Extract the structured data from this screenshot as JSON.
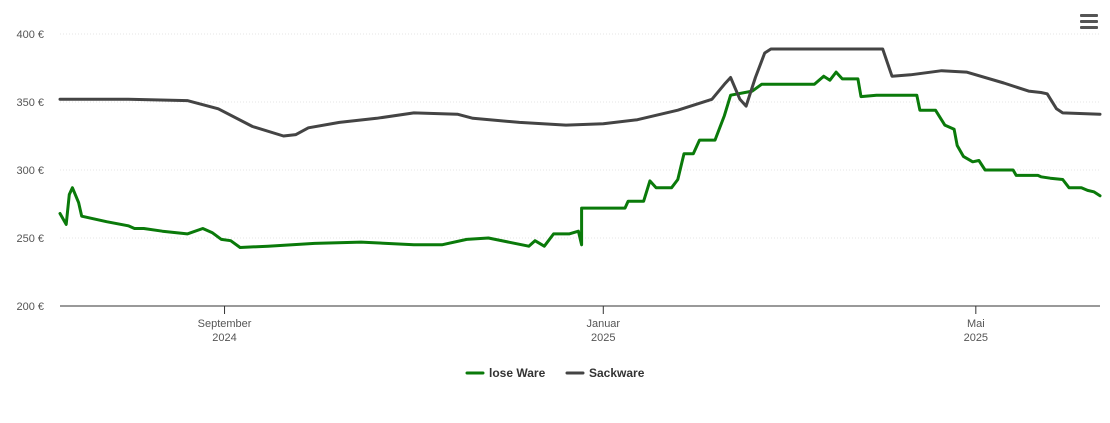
{
  "chart_data": {
    "type": "line",
    "y_unit": "€",
    "ylim": [
      200,
      400
    ],
    "y_ticks": [
      {
        "value": 200,
        "label": "200 €"
      },
      {
        "value": 250,
        "label": "250 €"
      },
      {
        "value": 300,
        "label": "300 €"
      },
      {
        "value": 350,
        "label": "350 €"
      },
      {
        "value": 400,
        "label": "400 €"
      }
    ],
    "xlim": [
      "2024-07-10",
      "2025-06-10"
    ],
    "x_ticks": [
      {
        "date": "2024-09-01",
        "month": "September",
        "year": "2024"
      },
      {
        "date": "2025-01-01",
        "month": "Januar",
        "year": "2025"
      },
      {
        "date": "2025-05-01",
        "month": "Mai",
        "year": "2025"
      }
    ],
    "grid": true,
    "legend": "bottom-center",
    "series": [
      {
        "name": "lose Ware",
        "color": "#0a7a0a",
        "points": [
          [
            "2024-07-10",
            268
          ],
          [
            "2024-07-12",
            260
          ],
          [
            "2024-07-13",
            282
          ],
          [
            "2024-07-14",
            287
          ],
          [
            "2024-07-16",
            276
          ],
          [
            "2024-07-17",
            266
          ],
          [
            "2024-07-25",
            262
          ],
          [
            "2024-08-01",
            259
          ],
          [
            "2024-08-03",
            257
          ],
          [
            "2024-08-06",
            257
          ],
          [
            "2024-08-12",
            255
          ],
          [
            "2024-08-20",
            253
          ],
          [
            "2024-08-25",
            257
          ],
          [
            "2024-08-28",
            254
          ],
          [
            "2024-08-31",
            249
          ],
          [
            "2024-09-03",
            248
          ],
          [
            "2024-09-06",
            243
          ],
          [
            "2024-09-15",
            244
          ],
          [
            "2024-09-30",
            246
          ],
          [
            "2024-10-15",
            247
          ],
          [
            "2024-11-01",
            245
          ],
          [
            "2024-11-10",
            245
          ],
          [
            "2024-11-18",
            249
          ],
          [
            "2024-11-25",
            250
          ],
          [
            "2024-12-10",
            248
          ],
          [
            "2024-12-25",
            245
          ],
          [
            "2024-12-08",
            244
          ],
          [
            "2024-12-13",
            244
          ],
          [
            "2024-12-16",
            253
          ],
          [
            "2024-12-21",
            253
          ],
          [
            "2024-12-24",
            255
          ],
          [
            "2024-12-25",
            272
          ],
          [
            "2024-12-28",
            272
          ],
          [
            "2025-01-01",
            272
          ],
          [
            "2025-01-08",
            272
          ],
          [
            "2025-01-09",
            277
          ],
          [
            "2025-01-14",
            277
          ],
          [
            "2025-01-16",
            292
          ],
          [
            "2025-01-18",
            287
          ],
          [
            "2025-01-23",
            287
          ],
          [
            "2025-01-25",
            293
          ],
          [
            "2025-01-27",
            312
          ],
          [
            "2025-01-30",
            312
          ],
          [
            "2025-02-01",
            322
          ],
          [
            "2025-02-06",
            322
          ],
          [
            "2025-02-09",
            340
          ],
          [
            "2025-02-11",
            355
          ],
          [
            "2025-02-18",
            358
          ],
          [
            "2025-02-21",
            363
          ],
          [
            "2025-03-10",
            363
          ],
          [
            "2025-03-13",
            369
          ],
          [
            "2025-03-15",
            366
          ],
          [
            "2025-03-17",
            372
          ],
          [
            "2025-03-19",
            367
          ],
          [
            "2025-03-24",
            367
          ],
          [
            "2025-03-25",
            354
          ],
          [
            "2025-03-30",
            355
          ],
          [
            "2025-04-01",
            355
          ],
          [
            "2025-04-02",
            355
          ],
          [
            "2025-04-12",
            355
          ],
          [
            "2025-04-13",
            344
          ],
          [
            "2025-04-18",
            344
          ],
          [
            "2025-04-21",
            333
          ],
          [
            "2025-04-24",
            330
          ],
          [
            "2025-04-25",
            318
          ],
          [
            "2025-04-27",
            310
          ],
          [
            "2025-04-30",
            306
          ],
          [
            "2025-05-02",
            307
          ],
          [
            "2025-05-04",
            300
          ],
          [
            "2025-05-10",
            300
          ],
          [
            "2025-05-13",
            300
          ],
          [
            "2025-05-14",
            296
          ],
          [
            "2025-05-21",
            296
          ],
          [
            "2025-05-22",
            295
          ],
          [
            "2025-05-25",
            294
          ],
          [
            "2025-05-29",
            293
          ],
          [
            "2025-05-31",
            287
          ],
          [
            "2025-06-04",
            287
          ],
          [
            "2025-06-06",
            285
          ],
          [
            "2025-06-08",
            284
          ],
          [
            "2025-06-10",
            281
          ]
        ]
      },
      {
        "name": "Sackware",
        "color": "#444444",
        "points": [
          [
            "2024-07-10",
            352
          ],
          [
            "2024-08-01",
            352
          ],
          [
            "2024-08-20",
            351
          ],
          [
            "2024-08-30",
            345
          ],
          [
            "2024-09-10",
            332
          ],
          [
            "2024-09-20",
            325
          ],
          [
            "2024-09-24",
            326
          ],
          [
            "2024-09-28",
            331
          ],
          [
            "2024-10-08",
            335
          ],
          [
            "2024-10-20",
            338
          ],
          [
            "2024-11-01",
            342
          ],
          [
            "2024-11-15",
            341
          ],
          [
            "2024-11-20",
            338
          ],
          [
            "2024-12-05",
            335
          ],
          [
            "2024-12-20",
            333
          ],
          [
            "2025-01-01",
            334
          ],
          [
            "2025-01-12",
            337
          ],
          [
            "2025-01-25",
            344
          ],
          [
            "2025-02-05",
            352
          ],
          [
            "2025-02-09",
            363
          ],
          [
            "2025-02-11",
            368
          ],
          [
            "2025-02-14",
            352
          ],
          [
            "2025-02-16",
            347
          ],
          [
            "2025-02-19",
            368
          ],
          [
            "2025-02-22",
            386
          ],
          [
            "2025-02-24",
            389
          ],
          [
            "2025-03-10",
            389
          ],
          [
            "2025-03-25",
            389
          ],
          [
            "2025-04-01",
            389
          ],
          [
            "2025-04-04",
            369
          ],
          [
            "2025-04-10",
            370
          ],
          [
            "2025-04-20",
            373
          ],
          [
            "2025-04-28",
            372
          ],
          [
            "2025-05-10",
            364
          ],
          [
            "2025-05-18",
            358
          ],
          [
            "2025-05-22",
            357
          ],
          [
            "2025-05-24",
            356
          ],
          [
            "2025-05-27",
            345
          ],
          [
            "2025-05-29",
            342
          ],
          [
            "2025-06-10",
            341
          ]
        ]
      }
    ]
  },
  "menu": {
    "icon": "hamburger-menu-icon"
  }
}
